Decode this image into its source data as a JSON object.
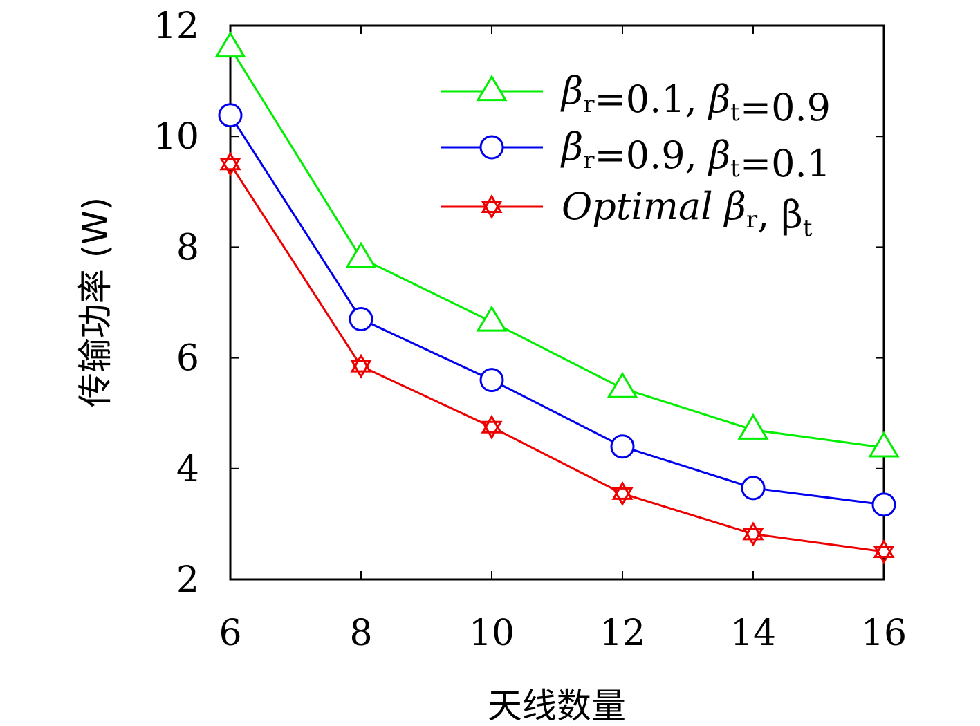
{
  "chart_data": {
    "type": "line",
    "xlabel": "天线数量",
    "ylabel": "传输功率 (W)",
    "x": [
      6,
      8,
      10,
      12,
      14,
      16
    ],
    "xlim": [
      6,
      16
    ],
    "ylim": [
      2,
      12
    ],
    "xticks": [
      "6",
      "8",
      "10",
      "12",
      "14",
      "16"
    ],
    "yticks": [
      "2",
      "4",
      "6",
      "8",
      "10",
      "12"
    ],
    "grid": false,
    "legend_position": "top-right",
    "series": [
      {
        "name": "βr=0.1, βt=0.9",
        "legend": {
          "s1": "β",
          "sub1": "r",
          "mid": "=0.1, ",
          "s2": "β",
          "sub2": "t",
          "end": "=0.9"
        },
        "color": "#00ee00",
        "marker": "triangle",
        "values": [
          11.6,
          7.8,
          6.65,
          5.45,
          4.7,
          4.38
        ]
      },
      {
        "name": "βr=0.9, βt=0.1",
        "legend": {
          "s1": "β",
          "sub1": "r",
          "mid": "=0.9, ",
          "s2": "β",
          "sub2": "t",
          "end": "=0.1"
        },
        "color": "#0000ee",
        "marker": "circle",
        "values": [
          10.38,
          6.7,
          5.6,
          4.4,
          3.65,
          3.35
        ]
      },
      {
        "name": "Optimal βr, βt",
        "legend": {
          "s1": "Optimal β",
          "sub1": "r",
          "mid": ", β",
          "s2": "",
          "sub2": "t",
          "end": ""
        },
        "color": "#ee0000",
        "marker": "hexagram",
        "values": [
          9.5,
          5.85,
          4.75,
          3.55,
          2.82,
          2.5
        ]
      }
    ]
  }
}
